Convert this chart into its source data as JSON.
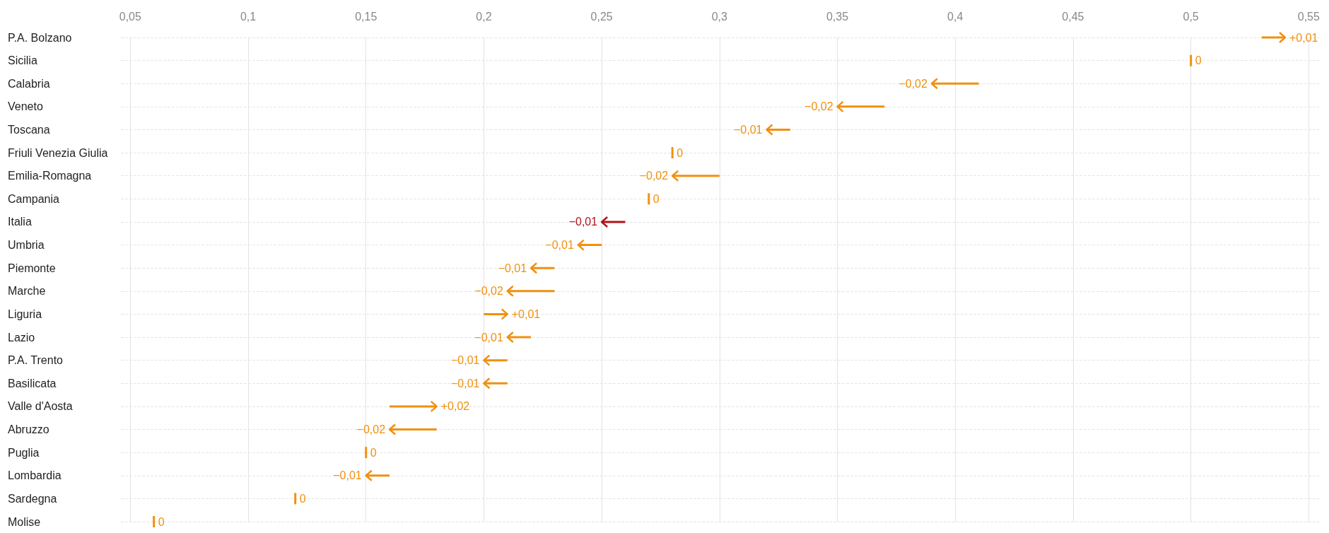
{
  "chart_data": {
    "type": "bar",
    "orientation": "horizontal",
    "categories": [
      "P.A. Bolzano",
      "Sicilia",
      "Calabria",
      "Veneto",
      "Toscana",
      "Friuli Venezia Giulia",
      "Emilia-Romagna",
      "Campania",
      "Italia",
      "Umbria",
      "Piemonte",
      "Marche",
      "Liguria",
      "Lazio",
      "P.A. Trento",
      "Basilicata",
      "Valle d'Aosta",
      "Abruzzo",
      "Puglia",
      "Lombardia",
      "Sardegna",
      "Molise"
    ],
    "base": [
      0.53,
      0.5,
      0.41,
      0.37,
      0.33,
      0.28,
      0.3,
      0.27,
      0.26,
      0.25,
      0.23,
      0.23,
      0.2,
      0.22,
      0.21,
      0.21,
      0.16,
      0.18,
      0.15,
      0.16,
      0.12,
      0.06
    ],
    "values": [
      0.01,
      0,
      -0.02,
      -0.02,
      -0.01,
      0,
      -0.02,
      0,
      -0.01,
      -0.01,
      -0.01,
      -0.02,
      0.01,
      -0.01,
      -0.01,
      -0.01,
      0.02,
      -0.02,
      0,
      -0.01,
      0,
      0
    ],
    "value_labels": [
      "+0,01",
      "0",
      "−0,02",
      "−0,02",
      "−0,01",
      "0",
      "−0,02",
      "0",
      "−0,01",
      "−0,01",
      "−0,01",
      "−0,02",
      "+0,01",
      "−0,01",
      "−0,01",
      "−0,01",
      "+0,02",
      "−0,02",
      "0",
      "−0,01",
      "0",
      "0"
    ],
    "colors": [
      "#f0900f",
      "#f0900f",
      "#f0900f",
      "#f0900f",
      "#f0900f",
      "#f0900f",
      "#f0900f",
      "#f0900f",
      "#b3121b",
      "#f0900f",
      "#f0900f",
      "#f0900f",
      "#f0900f",
      "#f0900f",
      "#f0900f",
      "#f0900f",
      "#f0900f",
      "#f0900f",
      "#f0900f",
      "#f0900f",
      "#f0900f",
      "#f0900f"
    ],
    "xlim": [
      0.046,
      0.555
    ],
    "xticks": [
      {
        "value": 0.05,
        "label": "0,05"
      },
      {
        "value": 0.1,
        "label": "0,1"
      },
      {
        "value": 0.15,
        "label": "0,15"
      },
      {
        "value": 0.2,
        "label": "0,2"
      },
      {
        "value": 0.25,
        "label": "0,25"
      },
      {
        "value": 0.3,
        "label": "0,3"
      },
      {
        "value": 0.35,
        "label": "0,35"
      },
      {
        "value": 0.4,
        "label": "0,4"
      },
      {
        "value": 0.45,
        "label": "0,45"
      },
      {
        "value": 0.5,
        "label": "0,5"
      },
      {
        "value": 0.55,
        "label": "0,55"
      }
    ],
    "grid": true
  }
}
